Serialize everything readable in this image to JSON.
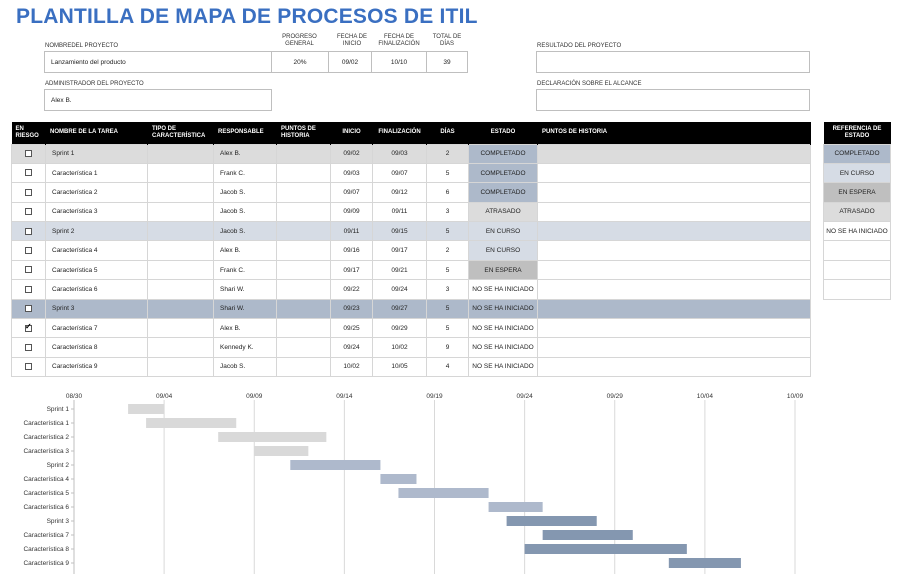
{
  "title": "PLANTILLA DE MAPA DE PROCESOS DE ITIL",
  "project": {
    "name_label": "NOMBREDEL PROYECTO",
    "name_value": "Lanzamiento del producto",
    "progress_label": "PROGRESO GENERAL",
    "progress_value": "20%",
    "start_label": "FECHA DE INICIO",
    "start_value": "09/02",
    "end_label": "FECHA DE FINALIZACIÓN",
    "end_value": "10/10",
    "total_days_label": "TOTAL DE DÍAS",
    "total_days_value": "39",
    "admin_label": "ADMINISTRADOR DEL PROYECTO",
    "admin_value": "Alex B.",
    "result_label": "RESULTADO DEL PROYECTO",
    "result_value": "",
    "scope_label": "DECLARACIÓN SOBRE EL ALCANCE",
    "scope_value": ""
  },
  "table": {
    "headers": {
      "risk": "EN RIESGO",
      "task": "NOMBRE DE LA TAREA",
      "feature_type": "TIPO DE CARACTERÍSTICA",
      "owner": "RESPONSABLE",
      "story_points": "PUNTOS DE HISTORIA",
      "start": "INICIO",
      "end": "FINALIZACIÓN",
      "days": "DÍAS",
      "status": "ESTADO",
      "story_points2": "PUNTOS DE HISTORIA"
    },
    "rows": [
      {
        "risk": false,
        "task": "Sprint 1",
        "type": "",
        "owner": "Alex B.",
        "points": "",
        "start": "09/02",
        "end": "09/03",
        "days": "2",
        "status": "COMPLETADO",
        "kind": "sprint"
      },
      {
        "risk": false,
        "task": "Característica 1",
        "type": "",
        "owner": "Frank C.",
        "points": "",
        "start": "09/03",
        "end": "09/07",
        "days": "5",
        "status": "COMPLETADO",
        "kind": "feature"
      },
      {
        "risk": false,
        "task": "Característica 2",
        "type": "",
        "owner": "Jacob S.",
        "points": "",
        "start": "09/07",
        "end": "09/12",
        "days": "6",
        "status": "COMPLETADO",
        "kind": "feature"
      },
      {
        "risk": false,
        "task": "Característica 3",
        "type": "",
        "owner": "Jacob S.",
        "points": "",
        "start": "09/09",
        "end": "09/11",
        "days": "3",
        "status": "ATRASADO",
        "kind": "feature"
      },
      {
        "risk": false,
        "task": "Sprint 2",
        "type": "",
        "owner": "Jacob S.",
        "points": "",
        "start": "09/11",
        "end": "09/15",
        "days": "5",
        "status": "EN CURSO",
        "kind": "sprint2"
      },
      {
        "risk": false,
        "task": "Característica 4",
        "type": "",
        "owner": "Alex B.",
        "points": "",
        "start": "09/16",
        "end": "09/17",
        "days": "2",
        "status": "EN CURSO",
        "kind": "feature"
      },
      {
        "risk": false,
        "task": "Característica 5",
        "type": "",
        "owner": "Frank C.",
        "points": "",
        "start": "09/17",
        "end": "09/21",
        "days": "5",
        "status": "EN ESPERA",
        "kind": "feature"
      },
      {
        "risk": false,
        "task": "Característica 6",
        "type": "",
        "owner": "Shari W.",
        "points": "",
        "start": "09/22",
        "end": "09/24",
        "days": "3",
        "status": "NO SE HA INICIADO",
        "kind": "feature"
      },
      {
        "risk": false,
        "task": "Sprint 3",
        "type": "",
        "owner": "Shari W.",
        "points": "",
        "start": "09/23",
        "end": "09/27",
        "days": "5",
        "status": "NO SE HA INICIADO",
        "kind": "sprint3"
      },
      {
        "risk": true,
        "task": "Característica 7",
        "type": "",
        "owner": "Alex B.",
        "points": "",
        "start": "09/25",
        "end": "09/29",
        "days": "5",
        "status": "NO SE HA INICIADO",
        "kind": "feature"
      },
      {
        "risk": false,
        "task": "Característica 8",
        "type": "",
        "owner": "Kennedy K.",
        "points": "",
        "start": "09/24",
        "end": "10/02",
        "days": "9",
        "status": "NO SE HA INICIADO",
        "kind": "feature"
      },
      {
        "risk": false,
        "task": "Característica 9",
        "type": "",
        "owner": "Jacob S.",
        "points": "",
        "start": "10/02",
        "end": "10/05",
        "days": "4",
        "status": "NO SE HA INICIADO",
        "kind": "feature"
      }
    ]
  },
  "status_reference": {
    "header": "REFERENCIA DE ESTADO",
    "items": [
      "COMPLETADO",
      "EN CURSO",
      "EN ESPERA",
      "ATRASADO",
      "NO SE HA INICIADO",
      "",
      "",
      ""
    ]
  },
  "colors": {
    "title": "#3a6fc1",
    "completado": "#adb9ca",
    "en_curso": "#d6dce5",
    "en_espera": "#bfbfbf",
    "atrasado": "#dcdcdc",
    "bar_sprint1": "#d9d9d9",
    "bar_sprint2": "#aeb9cc",
    "bar_sprint3": "#8497b0"
  },
  "chart_data": {
    "type": "bar",
    "orientation": "horizontal-gantt",
    "x_ticks": [
      "08/30",
      "09/04",
      "09/09",
      "09/14",
      "09/19",
      "09/24",
      "09/29",
      "10/04",
      "10/09"
    ],
    "x_range": [
      "08/30",
      "10/09"
    ],
    "grid": true,
    "tasks": [
      {
        "name": "Sprint 1",
        "start": "09/02",
        "end": "09/03",
        "days": 2,
        "group": 1
      },
      {
        "name": "Característica 1",
        "start": "09/03",
        "end": "09/07",
        "days": 5,
        "group": 1
      },
      {
        "name": "Característica 2",
        "start": "09/07",
        "end": "09/12",
        "days": 6,
        "group": 1
      },
      {
        "name": "Característica 3",
        "start": "09/09",
        "end": "09/11",
        "days": 3,
        "group": 1
      },
      {
        "name": "Sprint 2",
        "start": "09/11",
        "end": "09/15",
        "days": 5,
        "group": 2
      },
      {
        "name": "Característica 4",
        "start": "09/16",
        "end": "09/17",
        "days": 2,
        "group": 2
      },
      {
        "name": "Característica 5",
        "start": "09/17",
        "end": "09/21",
        "days": 5,
        "group": 2
      },
      {
        "name": "Característica 6",
        "start": "09/22",
        "end": "09/24",
        "days": 3,
        "group": 2
      },
      {
        "name": "Sprint 3",
        "start": "09/23",
        "end": "09/27",
        "days": 5,
        "group": 3
      },
      {
        "name": "Característica 7",
        "start": "09/25",
        "end": "09/29",
        "days": 5,
        "group": 3
      },
      {
        "name": "Característica 8",
        "start": "09/24",
        "end": "10/02",
        "days": 9,
        "group": 3
      },
      {
        "name": "Característica 9",
        "start": "10/02",
        "end": "10/05",
        "days": 4,
        "group": 3
      }
    ]
  }
}
